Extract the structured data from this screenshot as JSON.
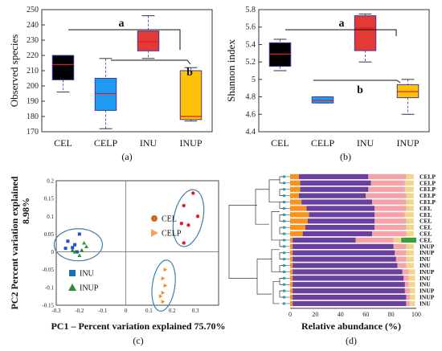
{
  "panel_labels": [
    "(a)",
    "(b)",
    "(c)",
    "(d)"
  ],
  "chart_data": [
    {
      "type": "box",
      "panel": "(a)",
      "ylabel": "Observed species",
      "ylim": [
        170,
        250
      ],
      "yticks": [
        170,
        180,
        190,
        200,
        210,
        220,
        230,
        240,
        250
      ],
      "categories": [
        "CEL",
        "CELP",
        "INU",
        "INUP"
      ],
      "colors": [
        "#000000",
        "#1E9BF0",
        "#E53935",
        "#FFC107"
      ],
      "boxes": [
        {
          "min": 196,
          "q1": 204,
          "median": 214,
          "q3": 220,
          "max": 220
        },
        {
          "min": 172,
          "q1": 184,
          "median": 195,
          "q3": 205,
          "max": 218
        },
        {
          "min": 218,
          "q1": 223,
          "median": 229,
          "q3": 236,
          "max": 246
        },
        {
          "min": 177,
          "q1": 178,
          "median": 180,
          "q3": 210,
          "max": 212
        }
      ],
      "annotations": [
        "a",
        "b"
      ]
    },
    {
      "type": "box",
      "panel": "(b)",
      "ylabel": "Shannon index",
      "ylim": [
        4.4,
        5.8
      ],
      "yticks": [
        "4.4",
        "4.6",
        "4.8",
        "5",
        "5.2",
        "5.4",
        "5.6",
        "5.8"
      ],
      "yticks_values": [
        4.4,
        4.6,
        4.8,
        5.0,
        5.2,
        5.4,
        5.6,
        5.8
      ],
      "categories": [
        "CEL",
        "CELP",
        "INU",
        "INUP"
      ],
      "colors": [
        "#000000",
        "#1E9BF0",
        "#E53935",
        "#FFC107"
      ],
      "boxes": [
        {
          "min": 5.1,
          "q1": 5.15,
          "median": 5.29,
          "q3": 5.42,
          "max": 5.46
        },
        {
          "min": 4.73,
          "q1": 4.73,
          "median": 4.76,
          "q3": 4.8,
          "max": 4.8
        },
        {
          "min": 5.2,
          "q1": 5.33,
          "median": 5.59,
          "q3": 5.73,
          "max": 5.75
        },
        {
          "min": 4.6,
          "q1": 4.79,
          "median": 4.86,
          "q3": 4.94,
          "max": 5.0
        }
      ],
      "annotations": [
        "a",
        "b"
      ]
    },
    {
      "type": "scatter",
      "panel": "(c)",
      "xlabel": "PC1 – Percent variation explained 75.70%",
      "ylabel": "PC2 Percent variation explained\n8.98%",
      "xlim": [
        -0.3,
        0.4
      ],
      "ylim": [
        -0.15,
        0.2
      ],
      "xticks": [
        "-0.3",
        "-0.2",
        "-0.1",
        "0",
        "0.1",
        "0.2",
        "0.3"
      ],
      "xticks_values": [
        -0.3,
        -0.2,
        -0.1,
        0,
        0.1,
        0.2,
        0.3
      ],
      "yticks": [
        "-0.15",
        "-0.1",
        "-0.05",
        "0",
        "0.05",
        "0.1",
        "0.15",
        "0.2"
      ],
      "yticks_values": [
        -0.15,
        -0.1,
        -0.05,
        0,
        0.05,
        0.1,
        0.15,
        0.2
      ],
      "legend": [
        {
          "name": "CEL",
          "marker": "circle",
          "color": "#D2691E"
        },
        {
          "name": "CELP",
          "marker": "triangle-right",
          "color": "#F4A460"
        },
        {
          "name": "INU",
          "marker": "square",
          "color": "#1E6FB8"
        },
        {
          "name": "INUP",
          "marker": "triangle-up",
          "color": "#2E8B2E"
        }
      ],
      "series": [
        {
          "name": "CEL",
          "color": "#E02020",
          "points": [
            [
              0.29,
              0.165
            ],
            [
              0.25,
              0.13
            ],
            [
              0.24,
              0.08
            ],
            [
              0.27,
              0.075
            ],
            [
              0.31,
              0.1
            ],
            [
              0.25,
              0.025
            ]
          ]
        },
        {
          "name": "CELP",
          "color": "#F08A20",
          "points": [
            [
              0.17,
              -0.05
            ],
            [
              0.16,
              -0.075
            ],
            [
              0.17,
              -0.095
            ],
            [
              0.16,
              -0.115
            ],
            [
              0.15,
              -0.125
            ],
            [
              0.16,
              -0.14
            ]
          ]
        },
        {
          "name": "INU",
          "color": "#1E4FD8",
          "points": [
            [
              -0.2,
              0.05
            ],
            [
              -0.25,
              0.03
            ],
            [
              -0.22,
              0.02
            ],
            [
              -0.26,
              0.01
            ],
            [
              -0.23,
              0.012
            ],
            [
              -0.21,
              0.0
            ]
          ]
        },
        {
          "name": "INUP",
          "color": "#2E8B2E",
          "points": [
            [
              -0.18,
              0.025
            ],
            [
              -0.23,
              0.005
            ],
            [
              -0.17,
              0.015
            ],
            [
              -0.2,
              -0.01
            ],
            [
              -0.19,
              0.005
            ],
            [
              -0.22,
              0.0
            ]
          ]
        }
      ]
    },
    {
      "type": "stacked-bar-horizontal",
      "panel": "(d)",
      "xlabel": "Relative abundance (%)",
      "xticks": [
        "0",
        "20",
        "40",
        "60",
        "80",
        "100"
      ],
      "xticks_values": [
        0,
        20,
        40,
        60,
        80,
        100
      ],
      "segment_colors": [
        "#F7931E",
        "#6A3FA0",
        "#F5A3A8",
        "#F2D58A",
        "#3A9E3A"
      ],
      "rows": [
        {
          "label": "CELP",
          "segments": [
            7,
            55,
            30,
            6,
            0
          ]
        },
        {
          "label": "CELP",
          "segments": [
            8,
            56,
            27,
            7,
            0
          ]
        },
        {
          "label": "CELP",
          "segments": [
            8,
            54,
            29,
            7,
            0
          ]
        },
        {
          "label": "CELP",
          "segments": [
            7,
            53,
            32,
            6,
            0
          ]
        },
        {
          "label": "CELP",
          "segments": [
            9,
            56,
            27,
            6,
            0
          ]
        },
        {
          "label": "CEL",
          "segments": [
            13,
            54,
            25,
            6,
            0
          ]
        },
        {
          "label": "CEL",
          "segments": [
            15,
            52,
            24,
            7,
            0
          ]
        },
        {
          "label": "CEL",
          "segments": [
            14,
            53,
            25,
            6,
            0
          ]
        },
        {
          "label": "CEL",
          "segments": [
            12,
            55,
            25,
            6,
            0
          ]
        },
        {
          "label": "CEL",
          "segments": [
            10,
            55,
            27,
            6,
            0
          ]
        },
        {
          "label": "CEL",
          "segments": [
            2,
            50,
            30,
            6,
            12
          ]
        },
        {
          "label": "INUP",
          "segments": [
            2,
            80,
            10,
            6,
            0
          ]
        },
        {
          "label": "INUP",
          "segments": [
            2,
            81,
            9,
            6,
            0
          ]
        },
        {
          "label": "INU",
          "segments": [
            2,
            82,
            8,
            6,
            0
          ]
        },
        {
          "label": "INU",
          "segments": [
            2,
            83,
            7,
            6,
            0
          ]
        },
        {
          "label": "INUP",
          "segments": [
            2,
            87,
            5,
            5,
            0
          ]
        },
        {
          "label": "INU",
          "segments": [
            2,
            88,
            4,
            5,
            0
          ]
        },
        {
          "label": "INU",
          "segments": [
            2,
            89,
            3,
            5,
            0
          ]
        },
        {
          "label": "INUP",
          "segments": [
            2,
            89,
            4,
            4,
            0
          ]
        },
        {
          "label": "INUP",
          "segments": [
            2,
            90,
            3,
            4,
            0
          ]
        },
        {
          "label": "INU",
          "segments": [
            2,
            90,
            3,
            4,
            0
          ]
        }
      ]
    }
  ]
}
